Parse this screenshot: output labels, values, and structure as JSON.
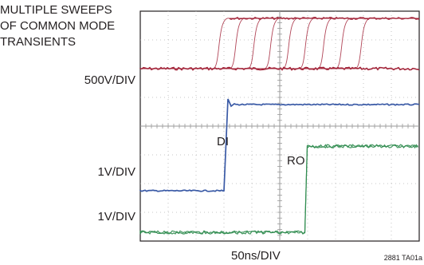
{
  "chart_data": {
    "type": "line",
    "annotation": [
      "MULTIPLE SWEEPS",
      "OF COMMON MODE",
      "TRANSIENTS"
    ],
    "scales": {
      "common_mode": "500V/DIV",
      "di": "1V/DIV",
      "ro": "1V/DIV"
    },
    "xlabel": "50ns/DIV",
    "figure_id": "2881 TA01a",
    "grid": {
      "x_divisions": 10,
      "y_divisions": 8,
      "center_crosshair": true
    },
    "series": [
      {
        "name": "common mode transients",
        "color": "#a3253a",
        "low_div": 6.0,
        "high_div": 7.75,
        "transition_times_div": [
          2.6,
          3.2,
          3.85,
          4.45,
          5.1,
          5.7,
          6.35,
          7.0,
          7.7
        ],
        "rise_div": 0.6
      },
      {
        "name": "DI",
        "color": "#3a5aa6",
        "low_div": 1.75,
        "high_div": 4.75,
        "transition_time_div": 3.0
      },
      {
        "name": "RO",
        "color": "#2e8b4e",
        "low_div": 0.3,
        "high_div": 3.3,
        "transition_time_div": 5.9
      }
    ]
  },
  "labels": {
    "di_trace": "DI",
    "ro_trace": "RO"
  }
}
